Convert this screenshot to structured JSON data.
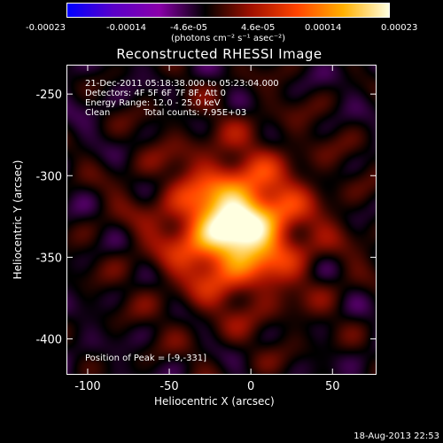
{
  "colorbar": {
    "ticks": [
      "-0.00023",
      "-0.00014",
      "-4.6e-05",
      "4.6e-05",
      "0.00014",
      "0.00023"
    ],
    "unit": "(photons cm⁻² s⁻¹ asec⁻²)"
  },
  "annotations": {
    "time_range": "21-Dec-2011 05:18:38.000 to 05:23:04.000",
    "detectors": "Detectors: 4F 5F 6F 7F 8F, Att 0",
    "energy": "Energy Range: 12.0 - 25.0 keV",
    "algorithm": "Clean",
    "counts": "Total counts: 7.95E+03",
    "peak": "Position of Peak = [-9,-331]"
  },
  "footer": {
    "date": "18-Aug-2013 22:53"
  },
  "chart_data": {
    "type": "heatmap",
    "title": "Reconstructed RHESSI Image",
    "xlabel": "Heliocentric X (arcsec)",
    "ylabel": "Heliocentric Y (arcsec)",
    "xlim": [
      -113,
      77
    ],
    "ylim": [
      -422,
      -232
    ],
    "xticks": [
      -100,
      -50,
      0,
      50
    ],
    "yticks": [
      -250,
      -300,
      -350,
      -400
    ],
    "zlim": [
      -0.00023,
      0.00023
    ],
    "colormap": [
      "#0000ff",
      "#5a00c8",
      "#8a00aa",
      "#000000",
      "#a01000",
      "#ff4400",
      "#ffb000",
      "#ffffe0"
    ],
    "peak": {
      "x": -9,
      "y": -331,
      "value": 0.00023
    }
  }
}
